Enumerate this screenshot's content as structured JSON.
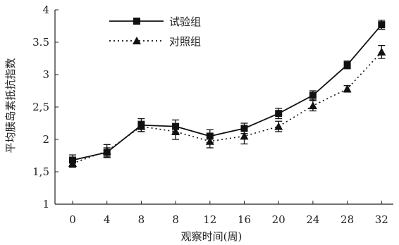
{
  "chart_data": {
    "type": "line",
    "title": "",
    "xlabel": "观察时间(周)",
    "ylabel": "平均胰岛素抵抗指数",
    "x": [
      "0",
      "4",
      "8",
      "8",
      "12",
      "16",
      "20",
      "24",
      "28",
      "32"
    ],
    "ylim": [
      1,
      4
    ],
    "yticks": [
      "1",
      "1,5",
      "2",
      "2,5",
      "3",
      "3.5",
      "4"
    ],
    "ytick_values": [
      1,
      1.5,
      2,
      2.5,
      3,
      3.5,
      4
    ],
    "grid": false,
    "legend_position": "top-center",
    "series": [
      {
        "name": "试验组",
        "marker": "square",
        "line_style": "solid",
        "values": [
          1.68,
          1.8,
          2.22,
          2.2,
          2.05,
          2.17,
          2.4,
          2.68,
          3.15,
          3.77
        ],
        "errors": [
          0.08,
          0.07,
          0.1,
          0.1,
          0.1,
          0.08,
          0.08,
          0.07,
          0.06,
          0.07
        ]
      },
      {
        "name": "对照组",
        "marker": "triangle",
        "line_style": "dotted",
        "values": [
          1.63,
          1.82,
          2.2,
          2.12,
          1.97,
          2.05,
          2.2,
          2.52,
          2.78,
          3.35
        ],
        "errors": [
          0.06,
          0.1,
          0.08,
          0.12,
          0.1,
          0.12,
          0.08,
          0.08,
          0.05,
          0.1
        ]
      }
    ],
    "colors": {
      "line": "#111111",
      "axis": "#222222",
      "background": "#ffffff"
    }
  }
}
